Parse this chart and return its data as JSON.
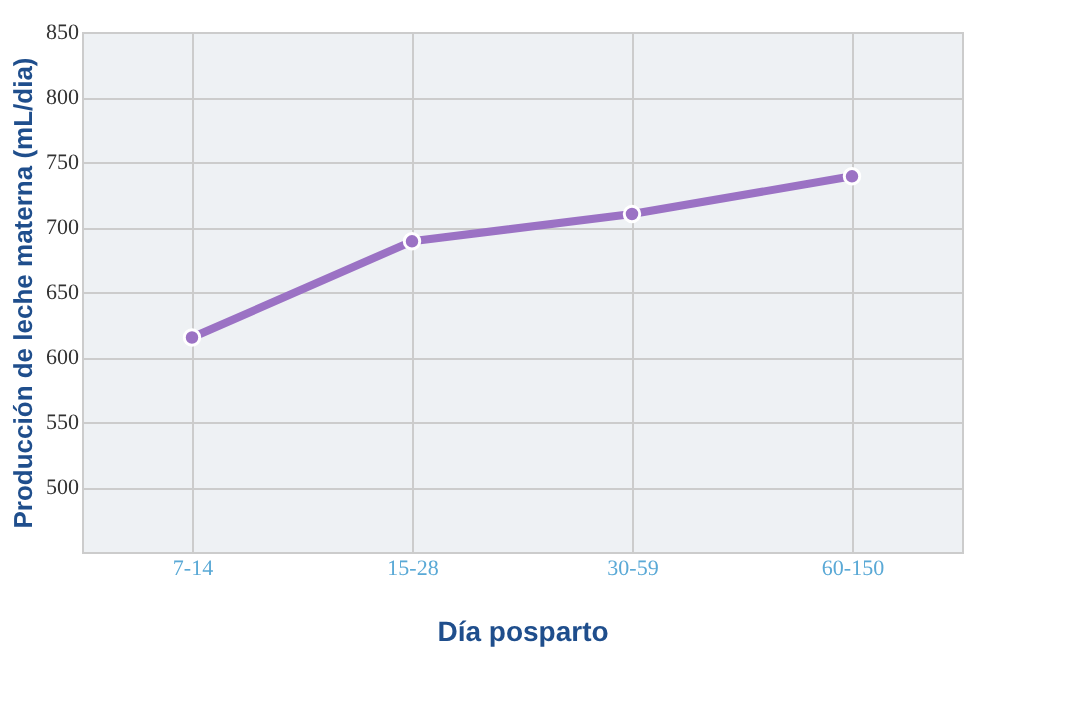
{
  "chart_data": {
    "type": "line",
    "xlabel": "Día posparto",
    "ylabel": "Producción de leche materna (mL/dia)",
    "categories": [
      "7-14",
      "15-28",
      "30-59",
      "60-150"
    ],
    "series": [
      {
        "color": "#9b72c4",
        "values": [
          615,
          689,
          710,
          739
        ]
      }
    ],
    "ylim": [
      450,
      850
    ],
    "yticks": [
      500,
      550,
      600,
      650,
      700,
      750,
      800,
      850
    ],
    "grid": true,
    "marker": "circle",
    "line_style": "solid"
  }
}
